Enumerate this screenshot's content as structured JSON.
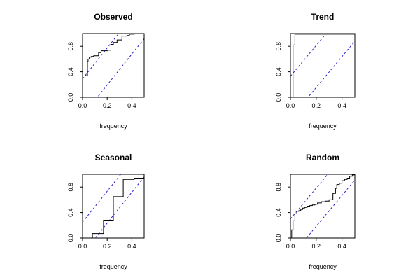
{
  "chart_data": [
    {
      "type": "line",
      "title": "Observed",
      "xlabel": "frequency",
      "ylabel": "",
      "xlim": [
        0,
        0.5
      ],
      "ylim": [
        0,
        1
      ],
      "xticks": [
        0.0,
        0.2,
        0.4
      ],
      "xtick_labels": [
        "0.0",
        "0.2",
        "0.4"
      ],
      "yticks": [
        0.0,
        0.4,
        0.8
      ],
      "ytick_labels": [
        "0.0",
        "0.4",
        "0.8"
      ],
      "series": [
        {
          "step": true,
          "x": [
            0,
            0.02,
            0.02,
            0.04,
            0.04,
            0.045,
            0.045,
            0.055,
            0.055,
            0.07,
            0.07,
            0.09,
            0.09,
            0.13,
            0.13,
            0.15,
            0.15,
            0.2,
            0.2,
            0.23,
            0.23,
            0.25,
            0.25,
            0.28,
            0.28,
            0.32,
            0.32,
            0.36,
            0.36,
            0.38,
            0.38,
            0.42,
            0.42,
            0.5
          ],
          "y": [
            0,
            0,
            0.34,
            0.34,
            0.56,
            0.56,
            0.6,
            0.6,
            0.63,
            0.63,
            0.64,
            0.64,
            0.65,
            0.65,
            0.7,
            0.7,
            0.73,
            0.73,
            0.74,
            0.74,
            0.83,
            0.83,
            0.86,
            0.86,
            0.9,
            0.9,
            0.96,
            0.96,
            0.97,
            0.97,
            0.99,
            0.99,
            1.0,
            1.0
          ]
        }
      ],
      "bands": [
        {
          "x": [
            0,
            0.5
          ],
          "y": [
            0.29,
            1.5
          ]
        },
        {
          "x": [
            0,
            0.5
          ],
          "y": [
            -0.29,
            0.92
          ]
        }
      ]
    },
    {
      "type": "line",
      "title": "Trend",
      "xlabel": "frequency",
      "ylabel": "",
      "xlim": [
        0,
        0.5
      ],
      "ylim": [
        0,
        1
      ],
      "xticks": [
        0.0,
        0.2,
        0.4
      ],
      "xtick_labels": [
        "0.0",
        "0.2",
        "0.4"
      ],
      "yticks": [
        0.0,
        0.4,
        0.8
      ],
      "ytick_labels": [
        "0.0",
        "0.4",
        "0.8"
      ],
      "series": [
        {
          "step": true,
          "x": [
            0,
            0.02,
            0.02,
            0.035,
            0.035,
            0.5
          ],
          "y": [
            0,
            0,
            0.82,
            0.82,
            0.99,
            0.99
          ]
        }
      ],
      "bands": [
        {
          "x": [
            0,
            0.5
          ],
          "y": [
            0.33,
            1.54
          ]
        },
        {
          "x": [
            0,
            0.5
          ],
          "y": [
            -0.33,
            0.88
          ]
        }
      ]
    },
    {
      "type": "line",
      "title": "Seasonal",
      "xlabel": "frequency",
      "ylabel": "",
      "xlim": [
        0,
        0.5
      ],
      "ylim": [
        0,
        1
      ],
      "xticks": [
        0.0,
        0.2,
        0.4
      ],
      "xtick_labels": [
        "0.0",
        "0.2",
        "0.4"
      ],
      "yticks": [
        0.0,
        0.4,
        0.8
      ],
      "ytick_labels": [
        "0.0",
        "0.4",
        "0.8"
      ],
      "series": [
        {
          "step": true,
          "x": [
            0,
            0.08,
            0.08,
            0.17,
            0.17,
            0.25,
            0.25,
            0.33,
            0.33,
            0.42,
            0.42,
            0.5
          ],
          "y": [
            0,
            0,
            0.07,
            0.07,
            0.28,
            0.28,
            0.65,
            0.65,
            0.92,
            0.92,
            0.94,
            0.94
          ]
        }
      ],
      "bands": [
        {
          "x": [
            0,
            0.5
          ],
          "y": [
            0.25,
            1.46
          ]
        },
        {
          "x": [
            0,
            0.5
          ],
          "y": [
            -0.25,
            0.96
          ]
        }
      ]
    },
    {
      "type": "line",
      "title": "Random",
      "xlabel": "frequency",
      "ylabel": "",
      "xlim": [
        0,
        0.5
      ],
      "ylim": [
        0,
        1
      ],
      "xticks": [
        0.0,
        0.2,
        0.4
      ],
      "xtick_labels": [
        "0.0",
        "0.2",
        "0.4"
      ],
      "yticks": [
        0.0,
        0.4,
        0.8
      ],
      "ytick_labels": [
        "0.0",
        "0.4",
        "0.8"
      ],
      "series": [
        {
          "step": true,
          "x": [
            0,
            0.01,
            0.01,
            0.02,
            0.02,
            0.035,
            0.035,
            0.05,
            0.05,
            0.065,
            0.065,
            0.08,
            0.08,
            0.095,
            0.095,
            0.11,
            0.11,
            0.13,
            0.13,
            0.15,
            0.15,
            0.17,
            0.17,
            0.19,
            0.19,
            0.21,
            0.21,
            0.24,
            0.24,
            0.27,
            0.27,
            0.3,
            0.3,
            0.33,
            0.33,
            0.35,
            0.35,
            0.36,
            0.36,
            0.38,
            0.38,
            0.4,
            0.4,
            0.42,
            0.42,
            0.44,
            0.44,
            0.46,
            0.46,
            0.48,
            0.48,
            0.5
          ],
          "y": [
            0,
            0,
            0.13,
            0.13,
            0.27,
            0.27,
            0.38,
            0.38,
            0.42,
            0.42,
            0.43,
            0.43,
            0.45,
            0.45,
            0.47,
            0.47,
            0.48,
            0.48,
            0.5,
            0.5,
            0.51,
            0.51,
            0.52,
            0.52,
            0.53,
            0.53,
            0.55,
            0.55,
            0.57,
            0.57,
            0.58,
            0.58,
            0.6,
            0.6,
            0.7,
            0.7,
            0.78,
            0.78,
            0.84,
            0.84,
            0.86,
            0.86,
            0.9,
            0.9,
            0.92,
            0.92,
            0.94,
            0.94,
            0.97,
            0.97,
            0.99,
            0.99
          ]
        }
      ],
      "bands": [
        {
          "x": [
            0,
            0.5
          ],
          "y": [
            0.3,
            1.51
          ]
        },
        {
          "x": [
            0,
            0.5
          ],
          "y": [
            -0.3,
            0.91
          ]
        }
      ]
    }
  ]
}
